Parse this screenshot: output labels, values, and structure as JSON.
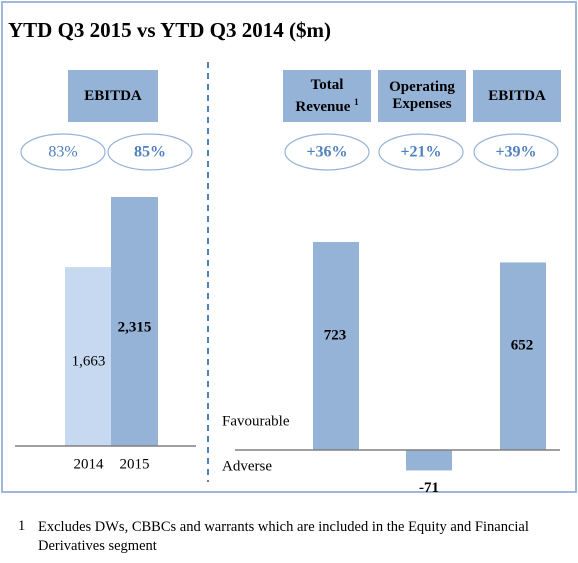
{
  "title": "YTD Q3 2015 vs YTD Q3 2014 ($m)",
  "chart_data": [
    {
      "type": "bar",
      "header": "EBITDA",
      "categories": [
        "2014",
        "2015"
      ],
      "values": [
        1663,
        2315
      ],
      "value_labels": [
        "1,663",
        "2,315"
      ],
      "colors": [
        "#c6d9f1",
        "#95b3d7"
      ],
      "annotations": [
        "83%",
        "85%"
      ]
    },
    {
      "type": "bar",
      "categories": [
        "Total Revenue",
        "Operating Expenses",
        "EBITDA"
      ],
      "category_refs": [
        "1",
        null,
        null
      ],
      "values": [
        723,
        -71,
        652
      ],
      "color": "#95b3d7",
      "annotations": [
        "+36%",
        "+21%",
        "+39%"
      ],
      "labels": {
        "positive": "Favourable",
        "negative": "Adverse"
      }
    }
  ],
  "footnote": {
    "marker": "1",
    "text": "Excludes DWs, CBBCs and warrants which are included in the Equity and Financial Derivatives segment"
  }
}
